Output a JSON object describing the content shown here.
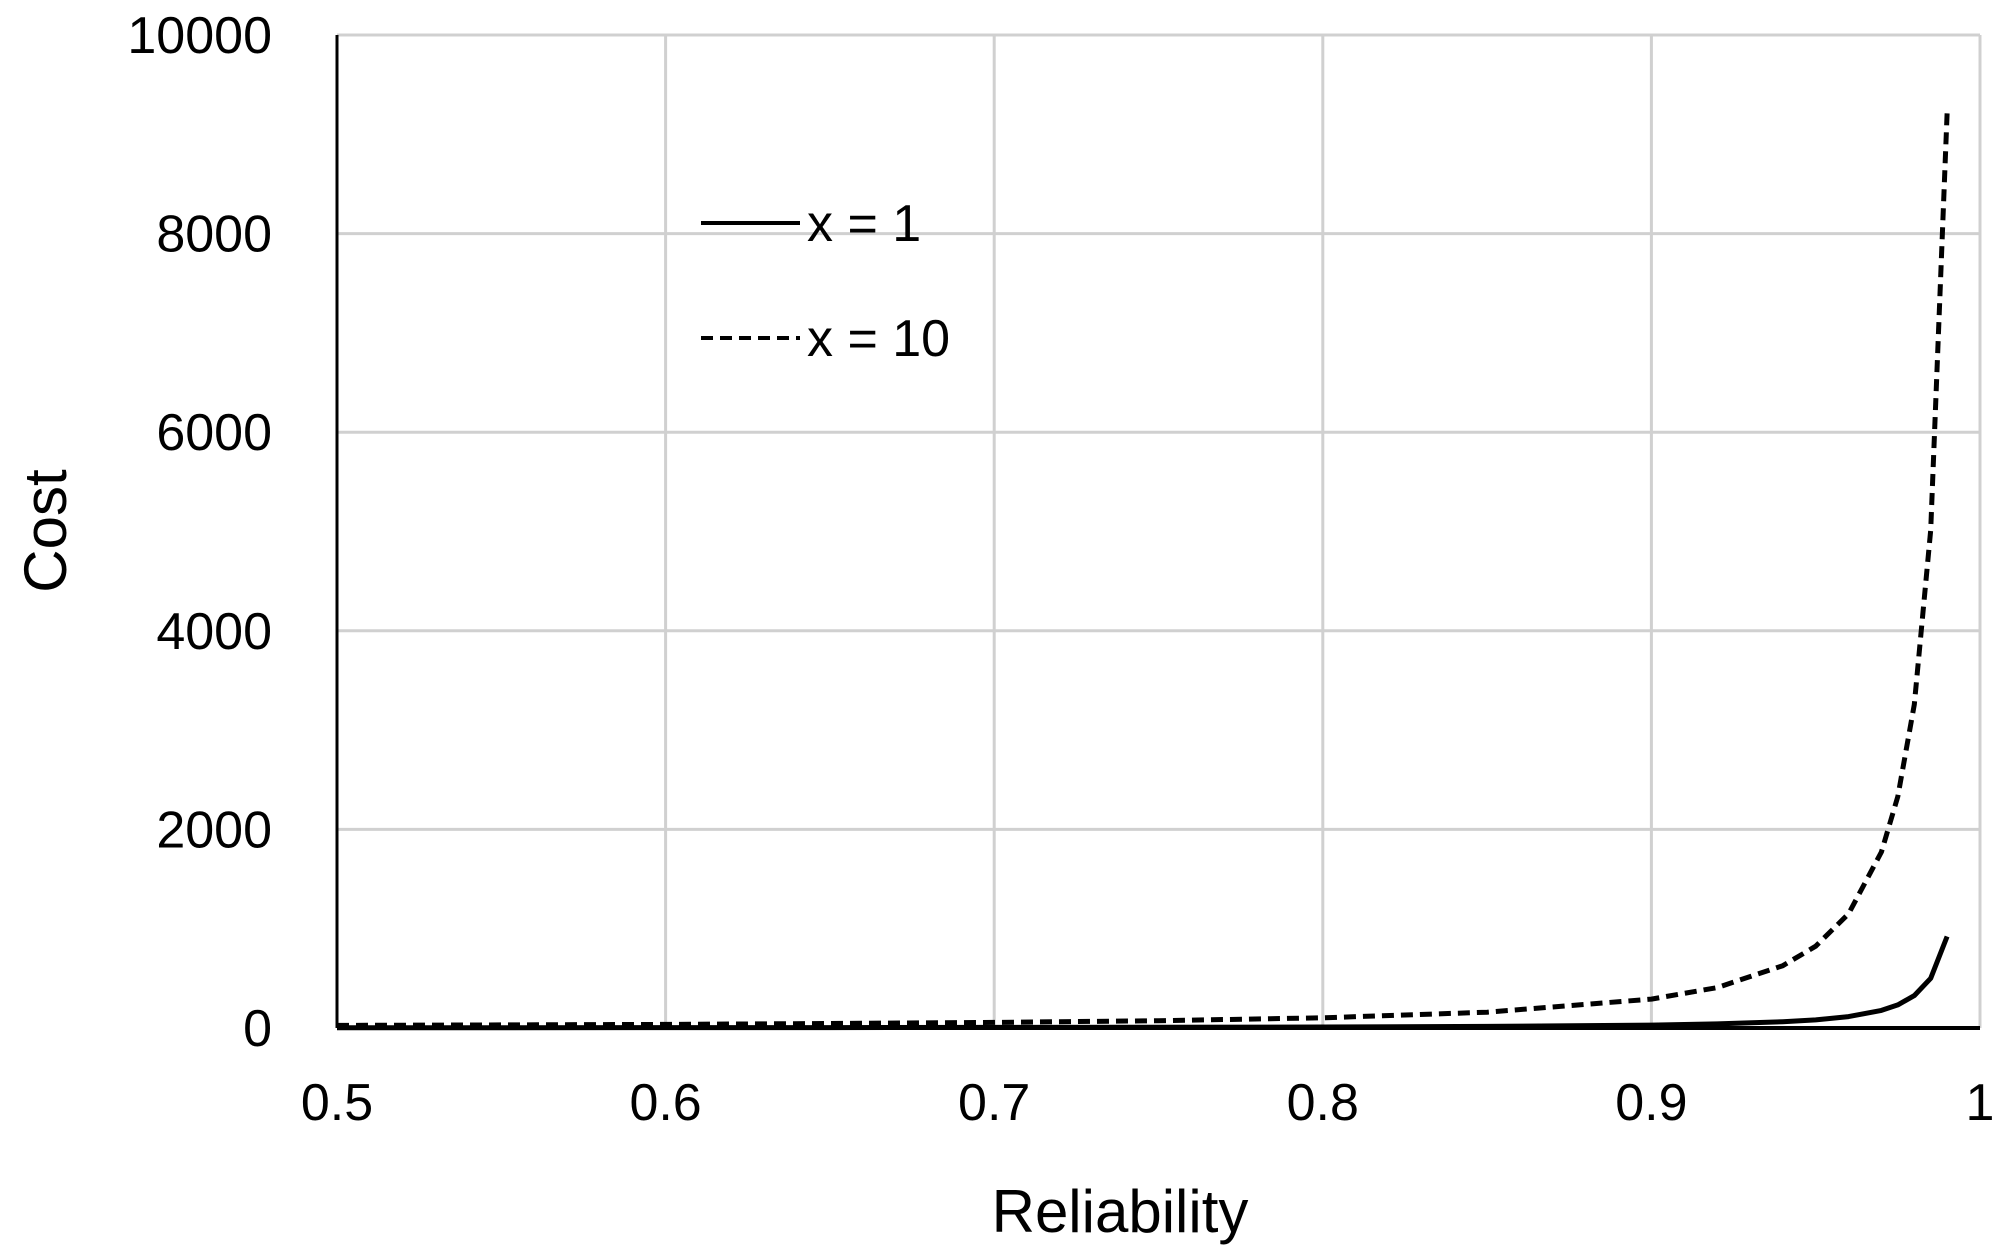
{
  "chart_data": {
    "type": "line",
    "title": "",
    "xlabel": "Reliability",
    "ylabel": "Cost",
    "xlim": [
      0.5,
      1
    ],
    "ylim": [
      0,
      10000
    ],
    "x_ticks": [
      "0.5",
      "0.6",
      "0.7",
      "0.8",
      "0.9",
      "1"
    ],
    "y_ticks": [
      "0",
      "2000",
      "4000",
      "6000",
      "8000",
      "10000"
    ],
    "grid": true,
    "legend_placement": "upper-left-inside",
    "x": [
      0.5,
      0.55,
      0.6,
      0.65,
      0.7,
      0.75,
      0.8,
      0.85,
      0.9,
      0.92,
      0.94,
      0.95,
      0.96,
      0.97,
      0.975,
      0.98,
      0.985,
      0.99
    ],
    "series": [
      {
        "name": "x = 1",
        "style": "solid",
        "color": "#000000",
        "values": [
          2.6,
          3.1,
          3.6,
          4.5,
          5.6,
          7.4,
          10,
          16,
          29,
          41,
          63,
          82,
          115,
          177,
          233,
          326,
          501,
          921
        ]
      },
      {
        "name": "x = 10",
        "style": "dashed",
        "color": "#000000",
        "values": [
          26,
          31,
          36,
          45,
          56,
          74,
          103,
          159,
          291,
          407,
          627,
          824,
          1151,
          1772,
          2330,
          3257,
          5013,
          9210
        ]
      }
    ]
  }
}
